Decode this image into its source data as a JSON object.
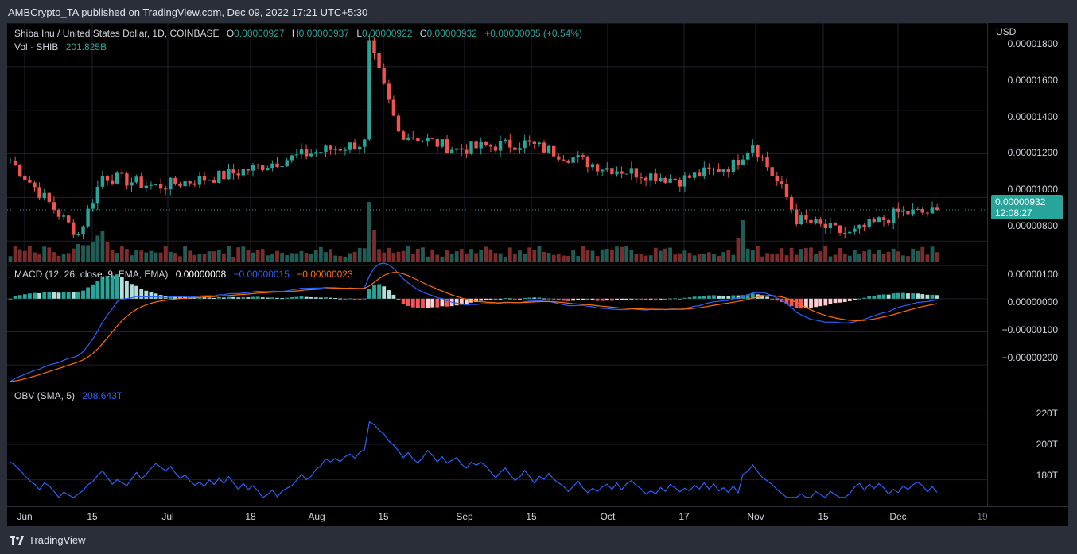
{
  "header": {
    "publisher_line": "AMBCrypto_TA published on TradingView.com, Dec 09, 2022 17:21 UTC+5:30"
  },
  "main": {
    "symbol": "Shiba Inu / United States Dollar, 1D, COINBASE",
    "open_label": "O",
    "open": "0.00000927",
    "high_label": "H",
    "high": "0.00000937",
    "low_label": "L",
    "low": "0.00000922",
    "close_label": "C",
    "close": "0.00000932",
    "change": "+0.00000005 (+0.54%)",
    "vol_label": "Vol · SHIB",
    "vol_value": "201.825B",
    "currency": "USD",
    "y_ticks": [
      "0.00001800",
      "0.00001600",
      "0.00001400",
      "0.00001200",
      "0.00001000",
      "0.00000800"
    ],
    "price_tag": "0.00000932",
    "countdown": "12:08:27"
  },
  "macd": {
    "title": "MACD (12, 26, close, 9, EMA, EMA)",
    "hist_value": "0.00000008",
    "macd_value": "−0.00000015",
    "signal_value": "−0.00000023",
    "y_ticks": [
      "0.00000100",
      "0.00000000",
      "−0.00000100",
      "−0.00000200"
    ]
  },
  "obv": {
    "title": "OBV (SMA, 5)",
    "value": "208.643T",
    "y_ticks": [
      "220T",
      "200T",
      "180T"
    ]
  },
  "x_axis": {
    "labels": [
      "Jun",
      "15",
      "Jul",
      "18",
      "Aug",
      "15",
      "Sep",
      "15",
      "Oct",
      "17",
      "Nov",
      "15",
      "Dec",
      "19"
    ]
  },
  "footer": {
    "brand": "TradingView"
  },
  "colors": {
    "up": "#26a69a",
    "down": "#ef5350",
    "macd": "#2962ff",
    "signal": "#ff6d00",
    "obv": "#2962ff",
    "grid": "#1e222d"
  },
  "chart_data": {
    "type": "candlestick",
    "price_range": [
      7.5e-06,
      1.8e-05
    ],
    "price_anchors": [
      {
        "date": "Jun 01",
        "close": 1.17e-05
      },
      {
        "date": "Jun 12",
        "close": 9e-06
      },
      {
        "date": "Jun 15",
        "close": 8.3e-06
      },
      {
        "date": "Jun 20",
        "close": 1.1e-05
      },
      {
        "date": "Jul 01",
        "close": 1.05e-05
      },
      {
        "date": "Jul 15",
        "close": 1.1e-05
      },
      {
        "date": "Aug 01",
        "close": 1.2e-05
      },
      {
        "date": "Aug 13",
        "close": 1.25e-05
      },
      {
        "date": "Aug 14",
        "close": 1.7e-05
      },
      {
        "date": "Aug 20",
        "close": 1.3e-05
      },
      {
        "date": "Sep 01",
        "close": 1.22e-05
      },
      {
        "date": "Sep 15",
        "close": 1.25e-05
      },
      {
        "date": "Oct 01",
        "close": 1.14e-05
      },
      {
        "date": "Oct 17",
        "close": 1.08e-05
      },
      {
        "date": "Oct 28",
        "close": 1.15e-05
      },
      {
        "date": "Nov 01",
        "close": 1.25e-05
      },
      {
        "date": "Nov 08",
        "close": 1e-05
      },
      {
        "date": "Nov 10",
        "close": 9e-06
      },
      {
        "date": "Nov 21",
        "close": 8.3e-06
      },
      {
        "date": "Dec 01",
        "close": 9.3e-06
      },
      {
        "date": "Dec 09",
        "close": 9.3e-06
      }
    ],
    "macd_range": [
      -2.5e-06,
      1.1e-06
    ],
    "obv_range": [
      165,
      235
    ]
  }
}
